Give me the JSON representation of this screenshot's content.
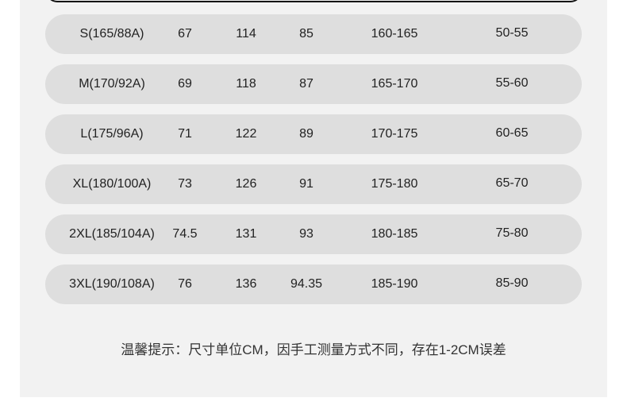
{
  "rows": [
    [
      "S(165/88A)",
      "67",
      "114",
      "85",
      "160-165",
      "50-55"
    ],
    [
      "M(170/92A)",
      "69",
      "118",
      "87",
      "165-170",
      "55-60"
    ],
    [
      "L(175/96A)",
      "71",
      "122",
      "89",
      "170-175",
      "60-65"
    ],
    [
      "XL(180/100A)",
      "73",
      "126",
      "91",
      "175-180",
      "65-70"
    ],
    [
      "2XL(185/104A)",
      "74.5",
      "131",
      "93",
      "180-185",
      "75-80"
    ],
    [
      "3XL(190/108A)",
      "76",
      "136",
      "94.35",
      "185-190",
      "85-90"
    ]
  ],
  "note": "温馨提示：尺寸单位CM，因手工测量方式不同，存在1-2CM误差",
  "colors": {
    "panel": "#f2f2f2",
    "row": "#dedede"
  }
}
